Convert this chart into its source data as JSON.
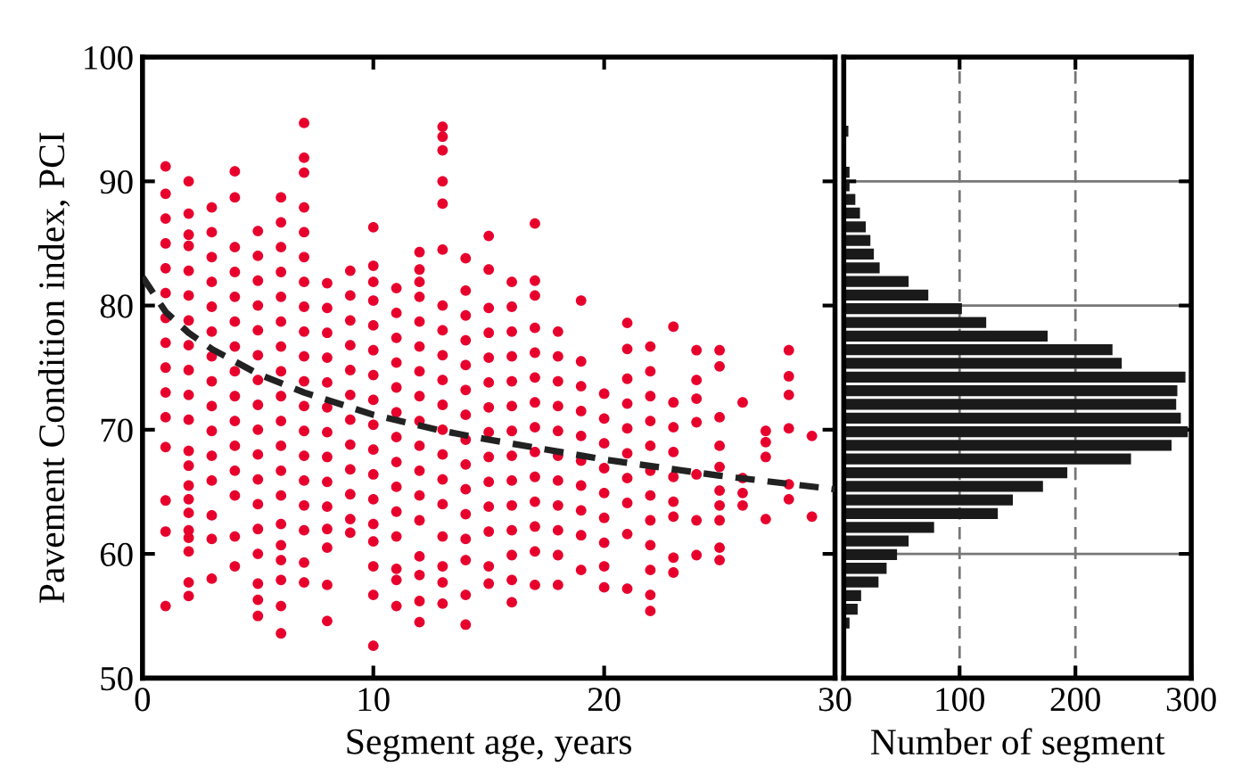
{
  "chart_data": [
    {
      "type": "scatter",
      "xlabel": "Segment age, years",
      "ylabel": "Pavement Condition index, PCI",
      "xlim": [
        0,
        30
      ],
      "xticks": [
        0,
        10,
        20,
        30
      ],
      "ylim": [
        50,
        100
      ],
      "yticks": [
        50,
        60,
        70,
        80,
        90,
        100
      ],
      "grid": false,
      "marker": "circle",
      "series": [
        {
          "type": "scatter",
          "color": "#e8002d",
          "x": [
            1,
            1,
            1,
            1,
            1,
            1,
            1,
            1,
            1,
            1,
            1,
            1,
            1,
            1,
            1,
            2,
            2,
            2,
            2,
            2,
            2,
            2,
            2,
            2,
            2,
            2,
            2,
            2,
            2,
            2,
            2,
            2,
            2,
            2,
            2,
            2,
            3,
            3,
            3,
            3,
            3,
            3,
            3,
            3,
            3,
            3,
            3,
            3,
            3,
            3,
            3,
            4,
            4,
            4,
            4,
            4,
            4,
            4,
            4,
            4,
            4,
            4,
            4,
            4,
            4,
            4,
            5,
            5,
            5,
            5,
            5,
            5,
            5,
            5,
            5,
            5,
            5,
            5,
            5,
            5,
            5,
            5,
            5,
            6,
            6,
            6,
            6,
            6,
            6,
            6,
            6,
            6,
            6,
            6,
            6,
            6,
            6,
            6,
            6,
            6,
            6,
            6,
            7,
            7,
            7,
            7,
            7,
            7,
            7,
            7,
            7,
            7,
            7,
            7,
            7,
            7,
            7,
            7,
            7,
            7,
            7,
            8,
            8,
            8,
            8,
            8,
            8,
            8,
            8,
            8,
            8,
            8,
            8,
            8,
            8,
            9,
            9,
            9,
            9,
            9,
            9,
            9,
            9,
            9,
            9,
            9,
            9,
            10,
            10,
            10,
            10,
            10,
            10,
            10,
            10,
            10,
            10,
            10,
            10,
            10,
            10,
            10,
            10,
            10,
            11,
            11,
            11,
            11,
            11,
            11,
            11,
            11,
            11,
            11,
            11,
            11,
            11,
            11,
            12,
            12,
            12,
            12,
            12,
            12,
            12,
            12,
            12,
            12,
            12,
            12,
            12,
            12,
            12,
            12,
            12,
            13,
            13,
            13,
            13,
            13,
            13,
            13,
            13,
            13,
            13,
            13,
            13,
            13,
            13,
            13,
            13,
            13,
            13,
            13,
            14,
            14,
            14,
            14,
            14,
            14,
            14,
            14,
            14,
            14,
            14,
            14,
            14,
            14,
            14,
            15,
            15,
            15,
            15,
            15,
            15,
            15,
            15,
            15,
            15,
            15,
            15,
            15,
            15,
            16,
            16,
            16,
            16,
            16,
            16,
            16,
            16,
            16,
            16,
            16,
            16,
            16,
            16,
            17,
            17,
            17,
            17,
            17,
            17,
            17,
            17,
            17,
            17,
            17,
            17,
            17,
            17,
            18,
            18,
            18,
            18,
            18,
            18,
            18,
            18,
            18,
            18,
            18,
            19,
            19,
            19,
            19,
            19,
            19,
            19,
            19,
            19,
            19,
            20,
            20,
            20,
            20,
            20,
            20,
            20,
            20,
            20,
            21,
            21,
            21,
            21,
            21,
            21,
            21,
            21,
            21,
            21,
            22,
            22,
            22,
            22,
            22,
            22,
            22,
            22,
            22,
            22,
            22,
            22,
            23,
            23,
            23,
            23,
            23,
            23,
            23,
            23,
            23,
            24,
            24,
            24,
            24,
            24,
            24,
            24,
            25,
            25,
            25,
            25,
            25,
            25,
            25,
            25,
            25,
            25,
            26,
            26,
            26,
            26,
            27,
            27,
            27,
            27,
            28,
            28,
            28,
            28,
            28,
            28,
            29,
            29
          ],
          "values": [
            91.2,
            89,
            87,
            85,
            83,
            81,
            79,
            77,
            75,
            73,
            71,
            68.6,
            64.3,
            61.8,
            55.8,
            90,
            87.4,
            85.7,
            84.8,
            82.8,
            80.8,
            78.8,
            76.8,
            74.8,
            72.8,
            70.8,
            68.3,
            67.1,
            65.5,
            64.4,
            63.3,
            61.9,
            61.3,
            60.2,
            57.7,
            56.6,
            87.9,
            85.9,
            83.9,
            81.9,
            79.9,
            77.9,
            75.9,
            73.9,
            71.9,
            69.9,
            67.9,
            65.9,
            63.1,
            61.2,
            58,
            90.8,
            88.7,
            84.7,
            82.7,
            80.7,
            78.7,
            76.7,
            74.7,
            72.7,
            70.7,
            68.7,
            66.7,
            64.7,
            61.4,
            59,
            86,
            84,
            82,
            80,
            78,
            76,
            74,
            72,
            70,
            68,
            66,
            64,
            62,
            60,
            57.6,
            56.3,
            55,
            88.7,
            86.7,
            84.7,
            82.7,
            80.7,
            78.7,
            76.7,
            74.7,
            72.7,
            70.7,
            68.7,
            66.7,
            64.7,
            62.4,
            60.7,
            59.5,
            57.9,
            55.8,
            53.6,
            94.7,
            91.9,
            90.7,
            87.9,
            85.9,
            83.9,
            81.9,
            79.9,
            77.9,
            75.9,
            73.9,
            71.9,
            69.9,
            67.9,
            65.9,
            63.9,
            61.9,
            59.3,
            57.7,
            81.8,
            79.8,
            77.8,
            75.8,
            73.8,
            71.8,
            69.8,
            67.8,
            65.8,
            63.8,
            62,
            60.5,
            57.5,
            54.6,
            82.8,
            80.8,
            78.8,
            76.8,
            74.8,
            72.8,
            70.8,
            68.8,
            66.8,
            64.8,
            62.8,
            61.7,
            86.3,
            83.2,
            81.9,
            80.4,
            78.4,
            76.4,
            74.4,
            72.4,
            70.4,
            68.4,
            66.4,
            64.4,
            62.4,
            61,
            59,
            56.7,
            52.6,
            81.4,
            79.4,
            77.4,
            75.4,
            73.4,
            71.4,
            69.4,
            67.4,
            65.4,
            63.4,
            61.4,
            58.8,
            57.9,
            55.8,
            84.3,
            82.9,
            81.9,
            80.7,
            78.7,
            76.7,
            74.7,
            72.7,
            70.7,
            68.7,
            66.7,
            64.7,
            62.7,
            59.8,
            58.3,
            56.2,
            54.5,
            94.4,
            93.6,
            92.5,
            90,
            88.2,
            84.5,
            80,
            78,
            76,
            74,
            72,
            70,
            68,
            66,
            64,
            61.4,
            59,
            57.7,
            56,
            83.8,
            81.2,
            79.2,
            77.2,
            75.2,
            73.2,
            71.2,
            69.2,
            67.2,
            65.2,
            63.2,
            61.2,
            59.5,
            56.7,
            54.3,
            85.6,
            82.9,
            79.8,
            77.8,
            75.8,
            73.8,
            71.8,
            69.8,
            67.8,
            65.8,
            63.8,
            61.8,
            59,
            57.6,
            81.9,
            79.9,
            77.9,
            75.9,
            73.9,
            71.9,
            69.9,
            67.9,
            65.9,
            63.9,
            61.9,
            59.9,
            57.9,
            56.1,
            86.6,
            82,
            80.8,
            78.2,
            76.2,
            74.2,
            72.2,
            70.2,
            68.2,
            66.2,
            64.2,
            62.2,
            60.2,
            57.5,
            77.9,
            75.9,
            73.9,
            71.9,
            69.9,
            67.9,
            65.9,
            63.9,
            61.9,
            59.9,
            57.5,
            80.4,
            75.5,
            73.5,
            71.5,
            69.5,
            67.5,
            65.5,
            63.5,
            61.5,
            58.7,
            72.9,
            70.9,
            68.9,
            66.9,
            64.9,
            62.9,
            60.9,
            59,
            57.3,
            78.6,
            76.5,
            74.1,
            72.1,
            70.1,
            68.1,
            66.1,
            64.1,
            61.6,
            57.2,
            76.7,
            74.7,
            72.7,
            70.7,
            68.7,
            66.7,
            64.7,
            62.7,
            60.7,
            58.7,
            56.7,
            55.4,
            78.3,
            72.2,
            70.2,
            68.2,
            66.2,
            64.2,
            63,
            59.7,
            58.5,
            76.4,
            74,
            72.5,
            70.6,
            66.4,
            62.7,
            59.9,
            76.4,
            75.1,
            71,
            68.7,
            67,
            65.1,
            63.9,
            62.7,
            60.5,
            59.5,
            72.2,
            66.1,
            64.9,
            63.9,
            69.9,
            69,
            67.8,
            62.8,
            76.4,
            74.3,
            72.8,
            70.1,
            65.6,
            64.4,
            69.5,
            63
          ]
        },
        {
          "type": "line",
          "color": "#222222",
          "line_style": "dashed",
          "marker": "none",
          "x": [
            0,
            1,
            2,
            3,
            5,
            7,
            10,
            13,
            15,
            20,
            25,
            30
          ],
          "values": [
            82.3,
            79.5,
            77.8,
            76.5,
            74.5,
            73,
            71.2,
            69.9,
            69.2,
            67.6,
            66.3,
            65.2
          ]
        }
      ]
    },
    {
      "type": "histogram",
      "orientation": "horizontal",
      "xlabel": "Number of segment",
      "xlim": [
        0,
        300
      ],
      "xticks": [
        100,
        200,
        300
      ],
      "ylim": [
        50,
        100
      ],
      "yticks": [
        50,
        60,
        70,
        80,
        90,
        100
      ],
      "tick_labels": "x",
      "grid": true,
      "color": "#1a1a1a",
      "bins": [
        54.0,
        55.1,
        56.2,
        57.3,
        58.4,
        59.5,
        60.6,
        61.7,
        62.8,
        63.9,
        65.0,
        66.1,
        67.2,
        68.3,
        69.4,
        70.5,
        71.6,
        72.7,
        73.8,
        74.9,
        76.0,
        77.1,
        78.2,
        79.3,
        80.4,
        81.5,
        82.6,
        83.7,
        84.8,
        85.9,
        87.0,
        88.1,
        89.2,
        90.3,
        91.4,
        92.5,
        93.6,
        94.7
      ],
      "values": [
        5,
        12,
        15,
        30,
        37,
        46,
        56,
        78,
        133,
        146,
        172,
        193,
        248,
        283,
        297,
        291,
        287,
        288,
        295,
        240,
        232,
        176,
        123,
        102,
        73,
        56,
        31,
        26,
        23,
        19,
        14,
        10,
        5,
        5,
        0,
        0,
        4
      ]
    }
  ]
}
